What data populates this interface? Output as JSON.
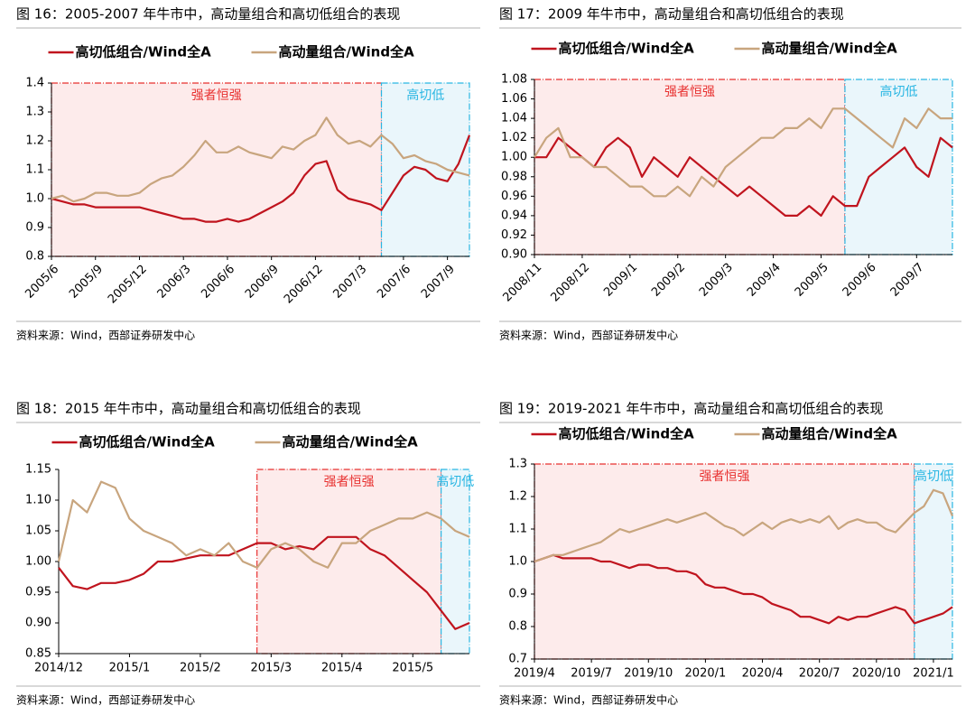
{
  "chart_data": [
    {
      "type": "line",
      "title": "图 16：2005-2007 年牛市中，高动量组合和高切低组合的表现",
      "source": "资料来源：Wind，西部证券研发中心",
      "categories": [
        "2005/6",
        null,
        null,
        null,
        "2005/9",
        null,
        null,
        null,
        "2005/12",
        null,
        null,
        null,
        "2006/3",
        null,
        null,
        null,
        "2006/6",
        null,
        null,
        null,
        "2006/9",
        null,
        null,
        null,
        "2006/12",
        null,
        null,
        null,
        "2007/3",
        null,
        null,
        null,
        "2007/6",
        null,
        null,
        null,
        "2007/9",
        null,
        null
      ],
      "series": [
        {
          "name": "高切低组合/Wind全A",
          "color": "#c0141e",
          "values": [
            1.0,
            0.99,
            0.98,
            0.98,
            0.97,
            0.97,
            0.97,
            0.97,
            0.97,
            0.96,
            0.95,
            0.94,
            0.93,
            0.93,
            0.92,
            0.92,
            0.93,
            0.92,
            0.93,
            0.95,
            0.97,
            0.99,
            1.02,
            1.08,
            1.12,
            1.13,
            1.03,
            1.0,
            0.99,
            0.98,
            0.96,
            1.02,
            1.08,
            1.11,
            1.1,
            1.07,
            1.06,
            1.12,
            1.22
          ]
        },
        {
          "name": "高动量组合/Wind全A",
          "color": "#c8a57e",
          "values": [
            1.0,
            1.01,
            0.99,
            1.0,
            1.02,
            1.02,
            1.01,
            1.01,
            1.02,
            1.05,
            1.07,
            1.08,
            1.11,
            1.15,
            1.2,
            1.16,
            1.16,
            1.18,
            1.16,
            1.15,
            1.14,
            1.18,
            1.17,
            1.2,
            1.22,
            1.28,
            1.22,
            1.19,
            1.2,
            1.18,
            1.22,
            1.19,
            1.14,
            1.15,
            1.13,
            1.12,
            1.1,
            1.09,
            1.08
          ]
        }
      ],
      "ylim": [
        0.8,
        1.4
      ],
      "yticks": [
        0.8,
        0.9,
        {
          "value": 1,
          "label": "1.0"
        },
        1.1,
        1.2,
        1.3,
        1.4
      ],
      "regions": [
        {
          "label": "强者恒强",
          "color": "#e8302f",
          "fill": "#fdebeb",
          "start": 0,
          "end": 30
        },
        {
          "label": "高切低",
          "color": "#29b6e3",
          "fill": "#eaf6fb",
          "start": 30,
          "end": 38
        }
      ]
    },
    {
      "type": "line",
      "title": "图 17：2009 年牛市中，高动量组合和高切低组合的表现",
      "source": "资料来源：Wind，西部证券研发中心",
      "categories": [
        "2008/11",
        null,
        null,
        null,
        "2008/12",
        null,
        null,
        null,
        "2009/1",
        null,
        null,
        null,
        "2009/2",
        null,
        null,
        null,
        "2009/3",
        null,
        null,
        null,
        "2009/4",
        null,
        null,
        null,
        "2009/5",
        null,
        null,
        null,
        "2009/6",
        null,
        null,
        null,
        "2009/7",
        null,
        null,
        null
      ],
      "series": [
        {
          "name": "高切低组合/Wind全A",
          "color": "#c0141e",
          "values": [
            1.0,
            1.0,
            1.02,
            1.01,
            1.0,
            0.99,
            1.01,
            1.02,
            1.01,
            0.98,
            1.0,
            0.99,
            0.98,
            1.0,
            0.99,
            0.98,
            0.97,
            0.96,
            0.97,
            0.96,
            0.95,
            0.94,
            0.94,
            0.95,
            0.94,
            0.96,
            0.95,
            0.95,
            0.98,
            0.99,
            1.0,
            1.01,
            0.99,
            0.98,
            1.02,
            1.01
          ]
        },
        {
          "name": "高动量组合/Wind全A",
          "color": "#c8a57e",
          "values": [
            1.0,
            1.02,
            1.03,
            1.0,
            1.0,
            0.99,
            0.99,
            0.98,
            0.97,
            0.97,
            0.96,
            0.96,
            0.97,
            0.96,
            0.98,
            0.97,
            0.99,
            1.0,
            1.01,
            1.02,
            1.02,
            1.03,
            1.03,
            1.04,
            1.03,
            1.05,
            1.05,
            1.04,
            1.03,
            1.02,
            1.01,
            1.04,
            1.03,
            1.05,
            1.04,
            1.04
          ]
        }
      ],
      "ylim": [
        0.9,
        1.08
      ],
      "yticks": [
        {
          "value": 0.9,
          "label": "0.90"
        },
        0.92,
        0.94,
        0.96,
        0.98,
        {
          "value": 1,
          "label": "1.00"
        },
        1.02,
        1.04,
        1.06,
        1.08
      ],
      "regions": [
        {
          "label": "强者恒强",
          "color": "#e8302f",
          "fill": "#fdebeb",
          "start": 0,
          "end": 26
        },
        {
          "label": "高切低",
          "color": "#29b6e3",
          "fill": "#eaf6fb",
          "start": 26,
          "end": 35
        }
      ]
    },
    {
      "type": "line",
      "title": "图 18：2015 年牛市中，高动量组合和高切低组合的表现",
      "source": "资料来源：Wind，西部证券研发中心",
      "categories": [
        "2014/12",
        null,
        null,
        null,
        null,
        "2015/1",
        null,
        null,
        null,
        null,
        "2015/2",
        null,
        null,
        null,
        null,
        "2015/3",
        null,
        null,
        null,
        null,
        "2015/4",
        null,
        null,
        null,
        null,
        "2015/5",
        null,
        null,
        null,
        null
      ],
      "series": [
        {
          "name": "高切低组合/Wind全A",
          "color": "#c0141e",
          "values": [
            0.99,
            0.96,
            0.955,
            0.965,
            0.965,
            0.97,
            0.98,
            1.0,
            1.0,
            1.005,
            1.01,
            1.01,
            1.01,
            1.02,
            1.03,
            1.03,
            1.02,
            1.025,
            1.02,
            1.04,
            1.04,
            1.04,
            1.02,
            1.01,
            0.99,
            0.97,
            0.95,
            0.92,
            0.89,
            0.9
          ]
        },
        {
          "name": "高动量组合/Wind全A",
          "color": "#c8a57e",
          "values": [
            1.0,
            1.1,
            1.08,
            1.13,
            1.12,
            1.07,
            1.05,
            1.04,
            1.03,
            1.01,
            1.02,
            1.01,
            1.03,
            1.0,
            0.99,
            1.02,
            1.03,
            1.02,
            1.0,
            0.99,
            1.03,
            1.03,
            1.05,
            1.06,
            1.07,
            1.07,
            1.08,
            1.07,
            1.05,
            1.04
          ]
        }
      ],
      "ylim": [
        0.85,
        1.15
      ],
      "yticks": [
        0.85,
        {
          "value": 0.9,
          "label": "0.90"
        },
        0.95,
        {
          "value": 1,
          "label": "1.00"
        },
        1.05,
        {
          "value": 1.1,
          "label": "1.10"
        },
        1.15
      ],
      "regions": [
        {
          "label": "强者恒强",
          "color": "#e8302f",
          "fill": "#fdebeb",
          "start": 14,
          "end": 27
        },
        {
          "label": "高切低",
          "color": "#29b6e3",
          "fill": "#eaf6fb",
          "start": 27,
          "end": 29
        }
      ]
    },
    {
      "type": "line",
      "title": "图 19：2019-2021 年牛市中，高动量组合和高切低组合的表现",
      "source": "资料来源：Wind，西部证券研发中心",
      "categories": [
        "2019/4",
        null,
        null,
        null,
        null,
        null,
        "2019/7",
        null,
        null,
        null,
        null,
        null,
        "2019/10",
        null,
        null,
        null,
        null,
        null,
        "2020/1",
        null,
        null,
        null,
        null,
        null,
        "2020/4",
        null,
        null,
        null,
        null,
        null,
        "2020/7",
        null,
        null,
        null,
        null,
        null,
        "2020/10",
        null,
        null,
        null,
        null,
        null,
        "2021/1",
        null,
        null
      ],
      "series": [
        {
          "name": "高切低组合/Wind全A",
          "color": "#c0141e",
          "values": [
            1.0,
            1.01,
            1.02,
            1.01,
            1.01,
            1.01,
            1.01,
            1.0,
            1.0,
            0.99,
            0.98,
            0.99,
            0.99,
            0.98,
            0.98,
            0.97,
            0.97,
            0.96,
            0.93,
            0.92,
            0.92,
            0.91,
            0.9,
            0.9,
            0.89,
            0.87,
            0.86,
            0.85,
            0.83,
            0.83,
            0.82,
            0.81,
            0.83,
            0.82,
            0.83,
            0.83,
            0.84,
            0.85,
            0.86,
            0.85,
            0.81,
            0.82,
            0.83,
            0.84,
            0.86
          ]
        },
        {
          "name": "高动量组合/Wind全A",
          "color": "#c8a57e",
          "values": [
            1.0,
            1.01,
            1.02,
            1.02,
            1.03,
            1.04,
            1.05,
            1.06,
            1.08,
            1.1,
            1.09,
            1.1,
            1.11,
            1.12,
            1.13,
            1.12,
            1.13,
            1.14,
            1.15,
            1.13,
            1.11,
            1.1,
            1.08,
            1.1,
            1.12,
            1.1,
            1.12,
            1.13,
            1.12,
            1.13,
            1.12,
            1.14,
            1.1,
            1.12,
            1.13,
            1.12,
            1.12,
            1.1,
            1.09,
            1.12,
            1.15,
            1.17,
            1.22,
            1.21,
            1.14
          ]
        }
      ],
      "ylim": [
        0.7,
        1.3
      ],
      "yticks": [
        0.7,
        0.8,
        0.9,
        {
          "value": 1,
          "label": "1.0"
        },
        1.1,
        1.2,
        1.3
      ],
      "regions": [
        {
          "label": "强者恒强",
          "color": "#e8302f",
          "fill": "#fdebeb",
          "start": 0,
          "end": 40
        },
        {
          "label": "高切低",
          "color": "#29b6e3",
          "fill": "#eaf6fb",
          "start": 40,
          "end": 44
        }
      ]
    }
  ]
}
